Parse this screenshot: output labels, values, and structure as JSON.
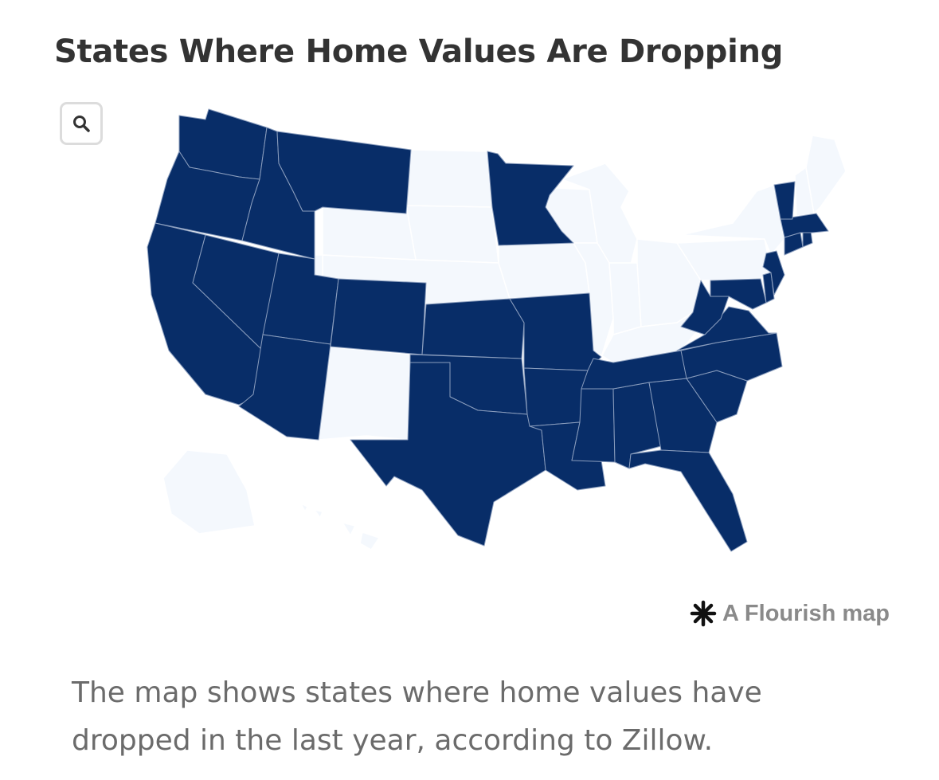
{
  "title": "States Where Home Values Are Dropping",
  "zoom_button": {
    "icon": "search-icon"
  },
  "attribution": {
    "icon": "flourish-asterisk-icon",
    "label": "A Flourish map"
  },
  "caption": "The map shows states where home values have dropped in the last year, according to Zillow.",
  "colors": {
    "dropping": "#082d68",
    "not_dropping": "#f4f8fd",
    "title": "#333333",
    "caption": "#6b6b6b",
    "attribution": "#8a8a8a"
  },
  "map_data": {
    "type": "choropleth",
    "region": "United States",
    "states_dropping": [
      "Washington",
      "Oregon",
      "California",
      "Idaho",
      "Nevada",
      "Montana",
      "Utah",
      "Arizona",
      "Colorado",
      "Kansas",
      "Oklahoma",
      "Texas",
      "Minnesota",
      "Missouri",
      "Arkansas",
      "Louisiana",
      "Mississippi",
      "Alabama",
      "Georgia",
      "Florida",
      "Tennessee",
      "South Carolina",
      "North Carolina",
      "Virginia",
      "West Virginia",
      "Maryland",
      "Delaware",
      "New Jersey",
      "Connecticut",
      "Rhode Island",
      "Massachusetts",
      "Vermont"
    ],
    "states_not_dropping": [
      "Wyoming",
      "New Mexico",
      "North Dakota",
      "South Dakota",
      "Nebraska",
      "Iowa",
      "Wisconsin",
      "Illinois",
      "Michigan",
      "Indiana",
      "Ohio",
      "Kentucky",
      "Pennsylvania",
      "New York",
      "New Hampshire",
      "Maine",
      "Alaska",
      "Hawaii"
    ]
  }
}
